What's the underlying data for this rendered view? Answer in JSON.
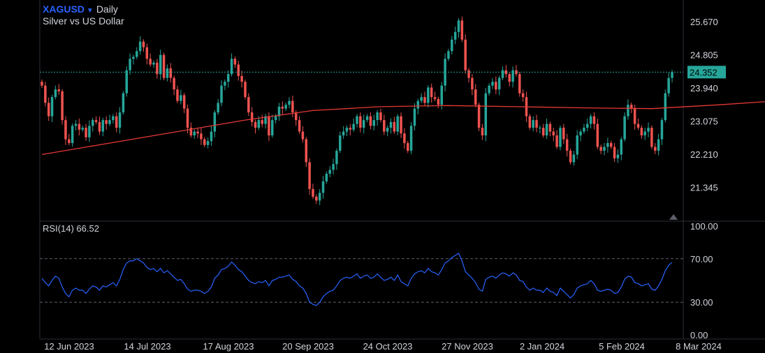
{
  "header": {
    "symbol": "XAGUSD",
    "timeframe": "Daily",
    "description": "Silver vs US Dollar"
  },
  "rsi": {
    "label": "RSI(14)",
    "value": "66.52",
    "ticks": [
      "100.00",
      "70.00",
      "30.00",
      "0.00"
    ]
  },
  "price_axis": {
    "ticks": [
      "25.670",
      "24.805",
      "23.940",
      "23.075",
      "22.210",
      "21.345"
    ],
    "current_price_label": "24.352"
  },
  "date_axis": {
    "labels": [
      "12 Jun 2023",
      "14 Jul 2023",
      "17 Aug 2023",
      "20 Sep 2023",
      "24 Oct 2023",
      "27 Nov 2023",
      "2 Jan 2024",
      "5 Feb 2024",
      "8 Mar 2024"
    ]
  },
  "colors": {
    "background": "#000000",
    "up": "#26a69a",
    "down": "#ef5350",
    "moving_average": "#e53935",
    "rsi_line": "#2962ff",
    "price_line": "#26a69a",
    "text": "#d1d4dc"
  },
  "chart_data": {
    "type": "candlestick",
    "price_range": [
      20.8,
      26.0
    ],
    "rsi_range": [
      0,
      100
    ],
    "rsi_levels": [
      30,
      70
    ],
    "current_price": 24.352,
    "close_series": [
      24.0,
      23.55,
      23.2,
      23.7,
      23.9,
      23.85,
      23.1,
      22.6,
      22.5,
      22.95,
      23.0,
      22.85,
      22.9,
      22.65,
      22.95,
      23.1,
      23.05,
      22.8,
      23.1,
      23.0,
      23.1,
      23.2,
      22.9,
      23.3,
      23.8,
      24.4,
      24.7,
      24.75,
      24.9,
      25.15,
      25.0,
      24.7,
      24.55,
      24.6,
      24.3,
      24.8,
      24.2,
      24.45,
      24.2,
      23.9,
      23.6,
      23.75,
      23.4,
      22.9,
      22.7,
      22.8,
      22.75,
      22.6,
      22.45,
      22.55,
      22.8,
      23.3,
      23.55,
      24.0,
      24.1,
      24.3,
      24.7,
      24.55,
      24.25,
      24.1,
      23.7,
      23.3,
      23.05,
      22.9,
      23.1,
      23.0,
      23.2,
      22.7,
      23.1,
      23.2,
      23.45,
      23.4,
      23.5,
      23.6,
      23.3,
      23.1,
      22.8,
      22.6,
      22.0,
      21.3,
      21.1,
      21.0,
      21.2,
      21.5,
      21.7,
      21.8,
      21.95,
      22.3,
      22.7,
      22.8,
      22.9,
      22.85,
      23.0,
      23.2,
      22.9,
      23.1,
      23.2,
      22.95,
      23.1,
      23.3,
      23.1,
      22.8,
      22.9,
      23.05,
      22.8,
      23.2,
      22.75,
      22.5,
      22.3,
      22.95,
      23.4,
      23.6,
      23.7,
      23.55,
      23.95,
      23.7,
      23.65,
      23.5,
      24.0,
      24.7,
      24.9,
      25.2,
      25.4,
      25.7,
      25.2,
      24.4,
      24.2,
      23.9,
      23.5,
      22.9,
      22.7,
      23.8,
      24.0,
      24.1,
      23.9,
      24.2,
      24.4,
      24.3,
      24.1,
      24.4,
      24.3,
      23.8,
      23.7,
      23.2,
      22.9,
      23.1,
      22.9,
      22.9,
      22.7,
      23.0,
      22.8,
      22.7,
      22.4,
      22.9,
      22.6,
      22.3,
      22.0,
      22.2,
      22.7,
      22.8,
      22.9,
      23.0,
      23.2,
      23.0,
      22.4,
      22.3,
      22.4,
      22.5,
      22.4,
      22.1,
      22.2,
      22.6,
      23.2,
      23.5,
      23.4,
      23.0,
      22.9,
      22.7,
      22.8,
      22.9,
      22.4,
      22.3,
      22.6,
      23.1,
      23.8,
      24.2,
      24.352
    ],
    "rsi_series": [
      52,
      48,
      45,
      50,
      54,
      52,
      44,
      38,
      35,
      41,
      43,
      41,
      41,
      38,
      42,
      45,
      44,
      41,
      45,
      44,
      46,
      48,
      45,
      51,
      60,
      66,
      68,
      68,
      70,
      68,
      66,
      62,
      60,
      61,
      58,
      61,
      57,
      59,
      56,
      53,
      50,
      51,
      47,
      42,
      40,
      41,
      41,
      40,
      38,
      40,
      44,
      52,
      55,
      60,
      61,
      63,
      67,
      64,
      60,
      58,
      54,
      50,
      48,
      47,
      49,
      48,
      50,
      45,
      50,
      51,
      53,
      53,
      54,
      55,
      51,
      49,
      45,
      43,
      38,
      30,
      28,
      27,
      30,
      35,
      38,
      40,
      41,
      45,
      50,
      52,
      53,
      52,
      54,
      56,
      52,
      54,
      55,
      52,
      53,
      56,
      53,
      50,
      51,
      53,
      50,
      55,
      49,
      47,
      45,
      52,
      56,
      58,
      59,
      57,
      61,
      58,
      57,
      55,
      60,
      66,
      68,
      71,
      73,
      75,
      68,
      58,
      55,
      52,
      48,
      42,
      40,
      51,
      53,
      54,
      52,
      55,
      57,
      56,
      54,
      57,
      55,
      50,
      49,
      44,
      41,
      43,
      41,
      41,
      39,
      43,
      40,
      39,
      36,
      43,
      40,
      37,
      34,
      37,
      43,
      45,
      46,
      47,
      50,
      47,
      41,
      40,
      41,
      42,
      41,
      38,
      39,
      44,
      51,
      54,
      53,
      48,
      47,
      45,
      46,
      47,
      42,
      41,
      45,
      51,
      59,
      64,
      66.52
    ],
    "moving_average": [
      [
        0,
        22.2
      ],
      [
        20,
        22.5
      ],
      [
        40,
        22.8
      ],
      [
        60,
        23.1
      ],
      [
        80,
        23.35
      ],
      [
        100,
        23.45
      ],
      [
        120,
        23.48
      ],
      [
        140,
        23.45
      ],
      [
        160,
        23.42
      ],
      [
        180,
        23.4
      ],
      [
        200,
        23.5
      ],
      [
        220,
        23.62
      ],
      [
        240,
        23.58
      ],
      [
        260,
        23.5
      ],
      [
        280,
        23.38
      ],
      [
        300,
        23.3
      ],
      [
        320,
        23.3
      ]
    ]
  }
}
